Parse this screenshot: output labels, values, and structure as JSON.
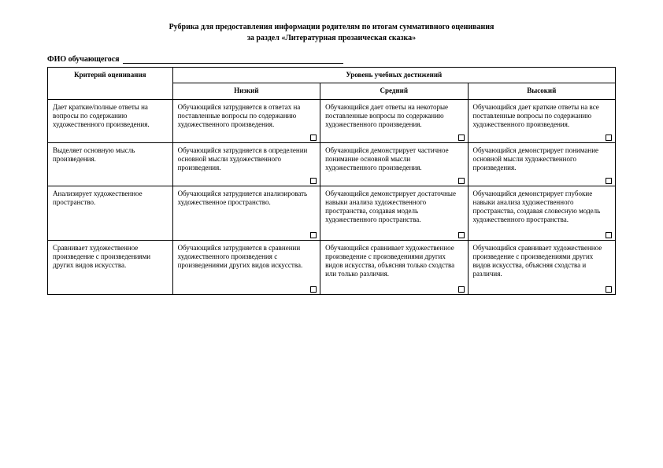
{
  "title_line1": "Рубрика для предоставления информации родителям по итогам суммативного оценивания",
  "title_line2": "за раздел «Литературная прозаическая сказка»",
  "fio_label": "ФИО обучающегося",
  "headers": {
    "criteria": "Критерий оценивания",
    "levels_group": "Уровень учебных достижений",
    "low": "Низкий",
    "medium": "Средний",
    "high": "Высокий"
  },
  "rows": [
    {
      "criterion": "Дает краткие/полные ответы на вопросы по содержанию художественного произведения.",
      "low": "Обучающийся затрудняется в ответах на поставленные вопросы по содержанию художественного произведения.",
      "medium": "Обучающийся дает ответы на некоторые поставленные вопросы по содержанию художественного произведения.",
      "high": "Обучающийся дает краткие ответы на все поставленные вопросы по содержанию художественного произведения."
    },
    {
      "criterion": "Выделяет основную мысль произведения.",
      "low": "Обучающийся затрудняется в определении основной мысли художественного произведения.",
      "medium": "Обучающийся демонстрирует частичное понимание основной мысли художественного произведения.",
      "high": "Обучающийся демонстрирует понимание основной мысли художественного произведения."
    },
    {
      "criterion": "Анализирует художественное пространство.",
      "low": "Обучающийся затрудняется анализировать художественное пространство.",
      "medium": "Обучающийся демонстрирует достаточные навыки анализа художественного пространства, создавая модель художественного пространства.",
      "high": "Обучающийся демонстрирует глубокие навыки анализа художественного пространства, создавая словесную модель художественного пространства."
    },
    {
      "criterion": "Сравнивает художественное произведение с произведениями других видов искусства.",
      "low": "Обучающийся затрудняется в сравнении художественного произведения с произведениями других видов искусства.",
      "medium": "Обучающийся сравнивает художественное произведение с произведениями других видов искусства, объясняя только сходства или только различия.",
      "high": "Обучающийся сравнивает художественное произведение с произведениями других видов искусства, объясняя сходства и различия."
    }
  ]
}
